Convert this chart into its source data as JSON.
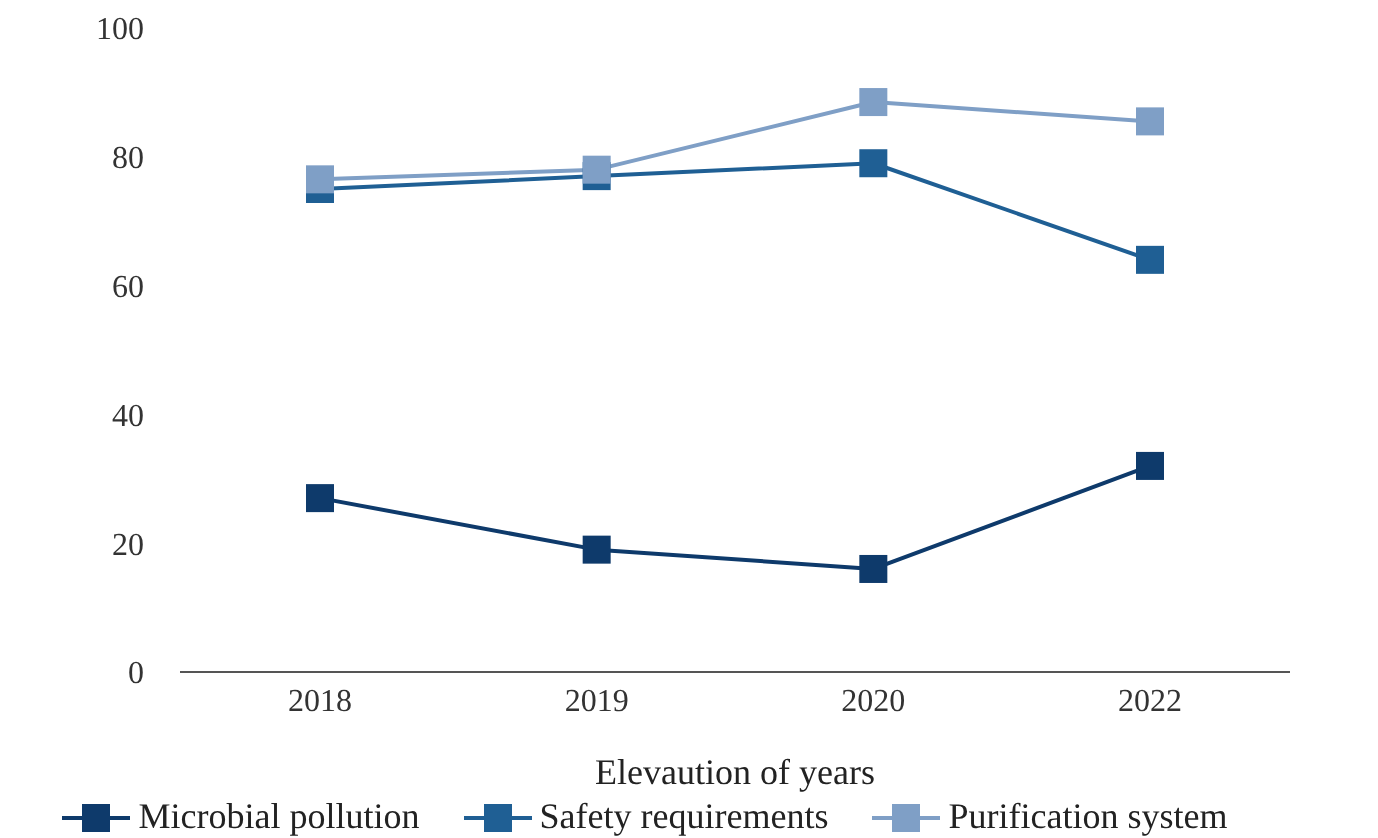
{
  "chart_data": {
    "type": "line",
    "xlabel": "Elevaution of years",
    "categories": [
      "2018",
      "2019",
      "2020",
      "2022"
    ],
    "series": [
      {
        "name": "Microbial pollution",
        "color": "#0e3a6b",
        "values": [
          27,
          19,
          16,
          32
        ]
      },
      {
        "name": "Safety requirements",
        "color": "#1f5f94",
        "values": [
          75,
          77,
          79,
          64
        ]
      },
      {
        "name": "Purification system",
        "color": "#7f9fc6",
        "values": [
          76.5,
          78,
          88.5,
          85.5
        ]
      }
    ],
    "ylim": [
      0,
      100
    ],
    "yticks": [
      0,
      20,
      40,
      60,
      80,
      100
    ],
    "grid": false,
    "legend": "bottom",
    "marker": "square",
    "line_style": "solid"
  }
}
